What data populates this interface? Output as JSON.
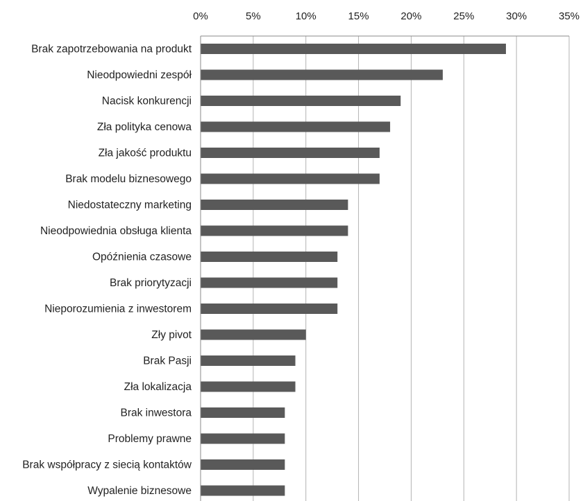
{
  "chart_data": {
    "type": "bar",
    "orientation": "horizontal",
    "categories": [
      "Brak zapotrzebowania na produkt",
      "Nieodpowiedni zespół",
      "Nacisk konkurencji",
      "Zła polityka cenowa",
      "Zła jakość produktu",
      "Brak modelu biznesowego",
      "Niedostateczny marketing",
      "Nieodpowiednia obsługa klienta",
      "Opóźnienia czasowe",
      "Brak priorytyzacji",
      "Nieporozumienia z inwestorem",
      "Zły pivot",
      "Brak Pasji",
      "Zła lokalizacja",
      "Brak inwestora",
      "Problemy prawne",
      "Brak współpracy z siecią kontaktów",
      "Wypalenie biznesowe"
    ],
    "values": [
      29,
      23,
      19,
      18,
      17,
      17,
      14,
      14,
      13,
      13,
      13,
      10,
      9,
      9,
      8,
      8,
      8,
      8
    ],
    "xlim": [
      0,
      35
    ],
    "ticks": [
      "0%",
      "5%",
      "10%",
      "15%",
      "20%",
      "25%",
      "30%",
      "35%"
    ],
    "tick_values": [
      0,
      5,
      10,
      15,
      20,
      25,
      30,
      35
    ],
    "axis_position": "top",
    "grid": true,
    "bar_color": "#595959",
    "grid_color": "#b3b3b3"
  }
}
